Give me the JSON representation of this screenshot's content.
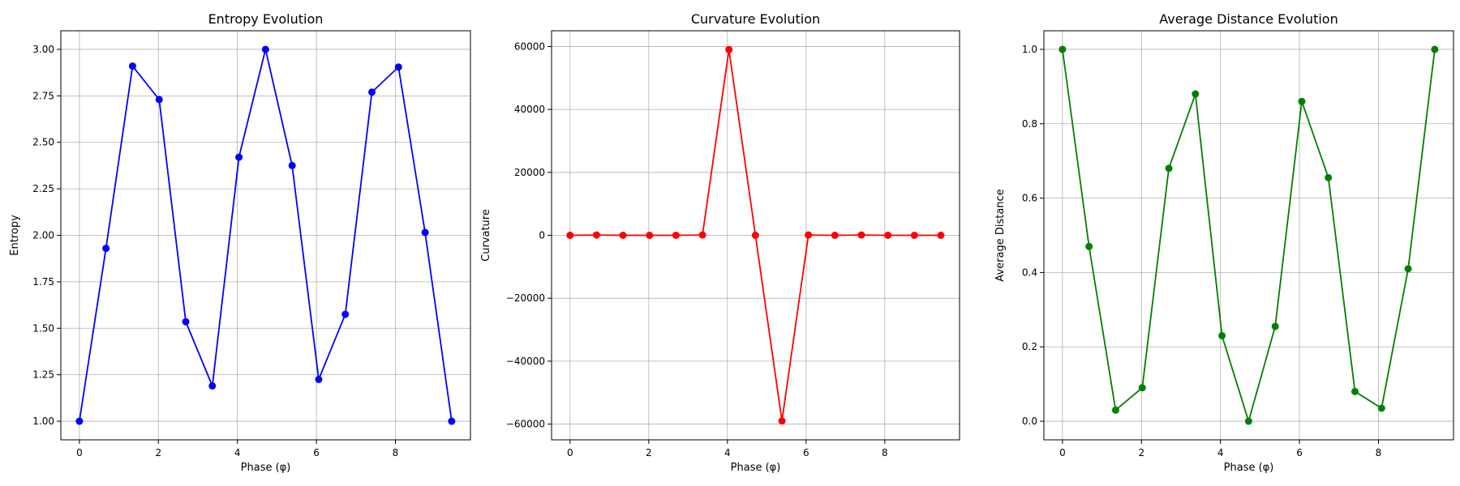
{
  "chart_data": [
    {
      "type": "line",
      "title": "Entropy Evolution",
      "xlabel": "Phase (φ)",
      "ylabel": "Entropy",
      "xlim": [
        -0.47,
        9.9
      ],
      "ylim": [
        0.9,
        3.1
      ],
      "xticks": [
        0,
        2,
        4,
        6,
        8
      ],
      "yticks": [
        1.0,
        1.25,
        1.5,
        1.75,
        2.0,
        2.25,
        2.5,
        2.75,
        3.0
      ],
      "yticklabels": [
        "1.00",
        "1.25",
        "1.50",
        "1.75",
        "2.00",
        "2.25",
        "2.50",
        "2.75",
        "3.00"
      ],
      "grid": true,
      "color": "#0000ff",
      "x": [
        0,
        0.673,
        1.346,
        2.02,
        2.693,
        3.366,
        4.039,
        4.712,
        5.386,
        6.059,
        6.732,
        7.405,
        8.078,
        8.752,
        9.425
      ],
      "y": [
        1.0,
        1.93,
        2.91,
        2.73,
        1.535,
        1.19,
        2.42,
        3.0,
        2.375,
        1.225,
        1.575,
        2.77,
        2.905,
        2.015,
        1.0
      ]
    },
    {
      "type": "line",
      "title": "Curvature Evolution",
      "xlabel": "Phase (φ)",
      "ylabel": "Curvature",
      "xlim": [
        -0.47,
        9.9
      ],
      "ylim": [
        -65000,
        65000
      ],
      "xticks": [
        0,
        2,
        4,
        6,
        8
      ],
      "yticks": [
        -60000,
        -40000,
        -20000,
        0,
        20000,
        40000,
        60000
      ],
      "yticklabels": [
        "−60000",
        "−40000",
        "−20000",
        "0",
        "20000",
        "40000",
        "60000"
      ],
      "grid": true,
      "color": "#ff0000",
      "x": [
        0,
        0.673,
        1.346,
        2.02,
        2.693,
        3.366,
        4.039,
        4.712,
        5.386,
        6.059,
        6.732,
        7.405,
        8.078,
        8.752,
        9.425
      ],
      "y": [
        0,
        100,
        0,
        0,
        0,
        100,
        59000,
        0,
        -59000,
        100,
        0,
        100,
        0,
        0,
        0
      ]
    },
    {
      "type": "line",
      "title": "Average Distance Evolution",
      "xlabel": "Phase (φ)",
      "ylabel": "Average Distance",
      "xlim": [
        -0.47,
        9.9
      ],
      "ylim": [
        -0.05,
        1.05
      ],
      "xticks": [
        0,
        2,
        4,
        6,
        8
      ],
      "yticks": [
        0.0,
        0.2,
        0.4,
        0.6,
        0.8,
        1.0
      ],
      "yticklabels": [
        "0.0",
        "0.2",
        "0.4",
        "0.6",
        "0.8",
        "1.0"
      ],
      "grid": true,
      "color": "#008000",
      "x": [
        0,
        0.673,
        1.346,
        2.02,
        2.693,
        3.366,
        4.039,
        4.712,
        5.386,
        6.059,
        6.732,
        7.405,
        8.078,
        8.752,
        9.425
      ],
      "y": [
        1.0,
        0.47,
        0.03,
        0.09,
        0.68,
        0.88,
        0.23,
        0.0,
        0.255,
        0.86,
        0.655,
        0.08,
        0.035,
        0.41,
        1.0
      ]
    }
  ]
}
